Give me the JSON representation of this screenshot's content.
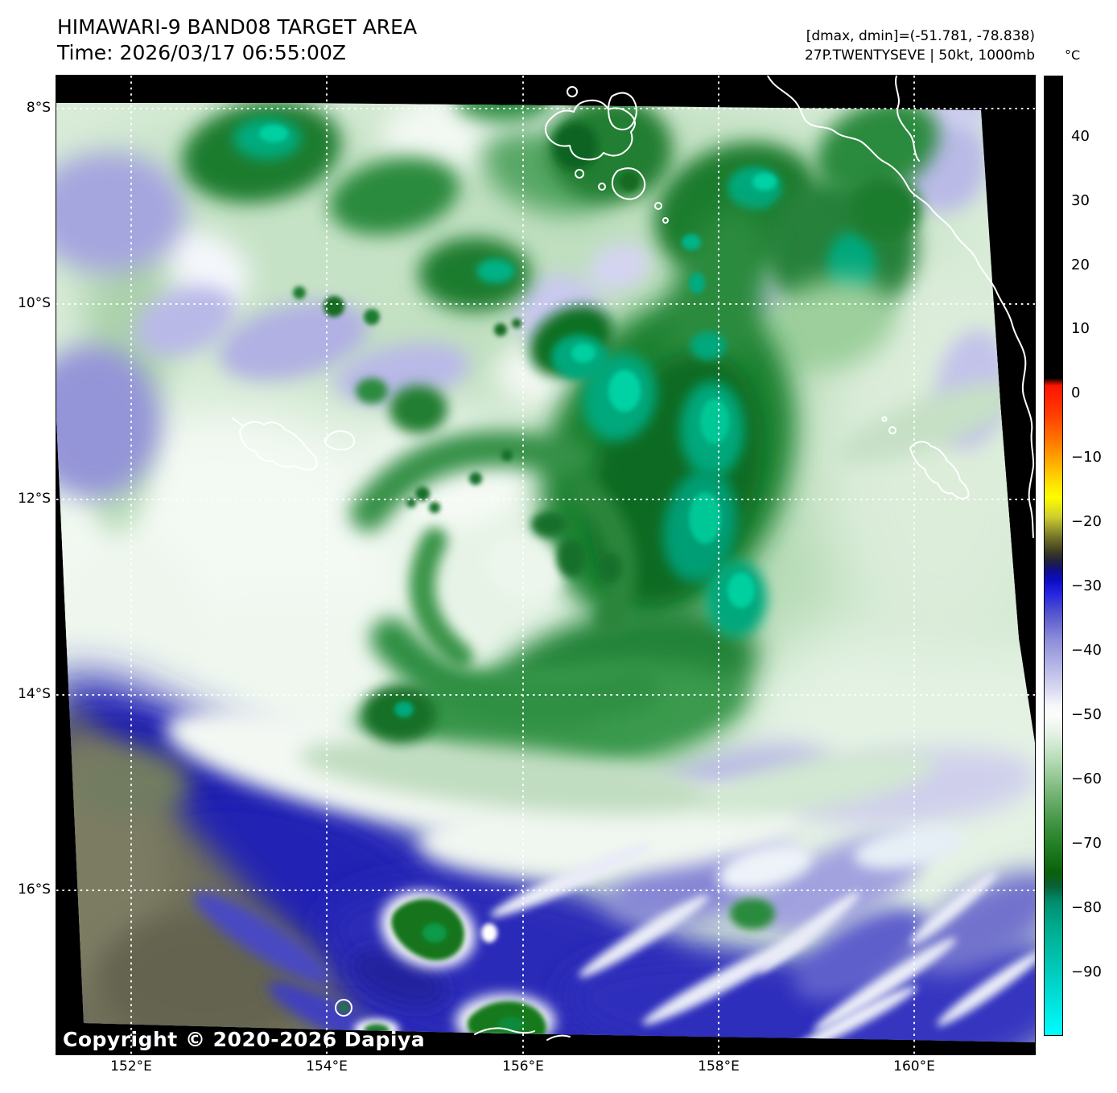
{
  "header": {
    "title": "HIMAWARI-9 BAND08 TARGET AREA",
    "time": "Time: 2026/03/17 06:55:00Z",
    "dmax_dmin": "[dmax, dmin]=(-51.781, -78.838)",
    "storm": "27P.TWENTYSEVE | 50kt, 1000mb"
  },
  "copyright": "Copyright © 2020-2026 Dapiya",
  "axes": {
    "lat_ticks": [
      "8°S",
      "10°S",
      "12°S",
      "14°S",
      "16°S"
    ],
    "lon_ticks": [
      "152°E",
      "154°E",
      "156°E",
      "158°E",
      "160°E"
    ]
  },
  "colorbar": {
    "unit": "°C",
    "domain": {
      "max": 49.6,
      "min": -99.8
    },
    "ticks": [
      {
        "value": 40,
        "label": "40"
      },
      {
        "value": 30,
        "label": "30"
      },
      {
        "value": 20,
        "label": "20"
      },
      {
        "value": 10,
        "label": "10"
      },
      {
        "value": 0,
        "label": "0"
      },
      {
        "value": -10,
        "label": "−10"
      },
      {
        "value": -20,
        "label": "−20"
      },
      {
        "value": -30,
        "label": "−30"
      },
      {
        "value": -40,
        "label": "−40"
      },
      {
        "value": -50,
        "label": "−50"
      },
      {
        "value": -60,
        "label": "−60"
      },
      {
        "value": -70,
        "label": "−70"
      },
      {
        "value": -80,
        "label": "−80"
      },
      {
        "value": -90,
        "label": "−90"
      }
    ],
    "stops": [
      [
        49.6,
        "#000000"
      ],
      [
        2.6,
        "#000000"
      ],
      [
        1.4,
        "#fe1400"
      ],
      [
        -3,
        "#ff3c00"
      ],
      [
        -7,
        "#ff7400"
      ],
      [
        -11,
        "#ffb300"
      ],
      [
        -14,
        "#ffe400"
      ],
      [
        -16,
        "#fdfd00"
      ],
      [
        -19,
        "#cfcf2e"
      ],
      [
        -22,
        "#79792b"
      ],
      [
        -24.5,
        "#3c3c22"
      ],
      [
        -26,
        "#20203e"
      ],
      [
        -27.5,
        "#0e0e8e"
      ],
      [
        -29,
        "#0d0dc6"
      ],
      [
        -31,
        "#2525e2"
      ],
      [
        -34,
        "#5353cf"
      ],
      [
        -38,
        "#8b8bd9"
      ],
      [
        -42,
        "#b3b3e6"
      ],
      [
        -46,
        "#dadaf1"
      ],
      [
        -48.5,
        "#f7f7fd"
      ],
      [
        -50,
        "#fbfdfb"
      ],
      [
        -53,
        "#e3f1e3"
      ],
      [
        -57,
        "#b6dab6"
      ],
      [
        -62,
        "#77b577"
      ],
      [
        -67,
        "#3f923f"
      ],
      [
        -71,
        "#1d7a1d"
      ],
      [
        -74.5,
        "#0b600b"
      ],
      [
        -76.5,
        "#0a5f36"
      ],
      [
        -79,
        "#008d6d"
      ],
      [
        -83,
        "#00ab8e"
      ],
      [
        -88,
        "#00c2b0"
      ],
      [
        -94,
        "#00dfd8"
      ],
      [
        -99.8,
        "#00fdff"
      ]
    ]
  }
}
